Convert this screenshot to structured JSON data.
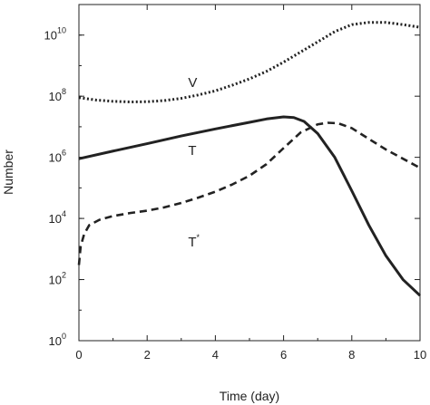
{
  "chart_data": {
    "type": "line",
    "xlabel": "Time (day)",
    "ylabel": "Number",
    "y_scale": "log10",
    "xlim": [
      0,
      10
    ],
    "ylim": [
      1,
      100000000000
    ],
    "x_ticks": [
      {
        "value": 0,
        "label": "0"
      },
      {
        "value": 2,
        "label": "2"
      },
      {
        "value": 4,
        "label": "4"
      },
      {
        "value": 6,
        "label": "6"
      },
      {
        "value": 8,
        "label": "8"
      },
      {
        "value": 10,
        "label": "10"
      }
    ],
    "y_ticks": [
      {
        "value": 1,
        "base": "10",
        "exp": "0"
      },
      {
        "value": 100,
        "base": "10",
        "exp": "2"
      },
      {
        "value": 10000,
        "base": "10",
        "exp": "4"
      },
      {
        "value": 1000000,
        "base": "10",
        "exp": "6"
      },
      {
        "value": 100000000,
        "base": "10",
        "exp": "8"
      },
      {
        "value": 10000000000,
        "base": "10",
        "exp": "10"
      }
    ],
    "grid": false,
    "series": [
      {
        "name": "V",
        "style": "dotted",
        "x": [
          0,
          0.5,
          1,
          1.5,
          2,
          2.5,
          3,
          3.5,
          4,
          4.5,
          5,
          5.5,
          6,
          6.5,
          7,
          7.5,
          8,
          8.5,
          9,
          9.5,
          10
        ],
        "y": [
          90000000,
          75000000,
          68000000,
          65000000,
          66000000,
          72000000,
          85000000,
          110000000,
          150000000,
          230000000,
          370000000,
          650000000,
          1300000000,
          2800000000,
          6000000000,
          13000000000,
          22000000000,
          26000000000,
          26000000000,
          22000000000,
          18000000000
        ]
      },
      {
        "name": "T",
        "style": "solid",
        "x": [
          0,
          1,
          2,
          3,
          4,
          5,
          5.5,
          6,
          6.3,
          6.6,
          7,
          7.5,
          8,
          8.5,
          9,
          9.5,
          10
        ],
        "y": [
          900000,
          1600000,
          2800000,
          5000000,
          8500000,
          14000000,
          18000000,
          21000000,
          20000000,
          15000000,
          6000000,
          1000000,
          80000,
          6000,
          600,
          100,
          30
        ]
      },
      {
        "name": "T*",
        "style": "dashed",
        "x": [
          0,
          0.05,
          0.15,
          0.3,
          0.6,
          1,
          1.5,
          2,
          2.5,
          3,
          3.5,
          4,
          4.5,
          5,
          5.5,
          6,
          6.5,
          7,
          7.3,
          7.6,
          8,
          8.5,
          9,
          9.5,
          10
        ],
        "y": [
          300,
          1200,
          3000,
          6000,
          9000,
          12000,
          15000,
          18000,
          23000,
          32000,
          48000,
          75000,
          130000,
          250000,
          600000,
          2000000,
          6500000,
          12000000,
          13500000,
          13000000,
          9000000,
          4000000,
          1800000,
          900000,
          450000
        ]
      }
    ],
    "annotations": [
      {
        "text": "V",
        "x": 3.2,
        "y": 200000000
      },
      {
        "text": "T",
        "x": 3.2,
        "y": 1200000
      },
      {
        "text": "T",
        "sup": "*",
        "x": 3.2,
        "y": 1200
      }
    ]
  }
}
